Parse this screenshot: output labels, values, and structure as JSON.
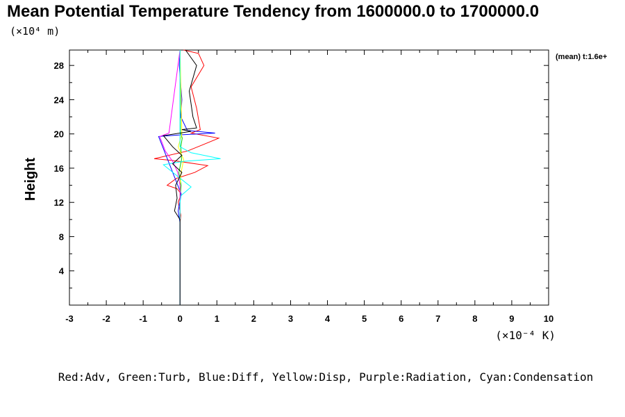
{
  "chart_data": {
    "type": "line",
    "title": "Mean Potential Temperature Tendency from 1600000.0 to 1700000.0",
    "ylabel": "Height",
    "y_unit": "(×10⁴ m)",
    "x_unit": "(×10⁻⁴ K)",
    "annotation": "(mean) t:1.6e+",
    "legend_text": "Red:Adv, Green:Turb, Blue:Diff, Yellow:Disp, Purple:Radiation, Cyan:Condensation",
    "xlim": [
      -3,
      10
    ],
    "ylim": [
      0,
      29.8
    ],
    "xticks": [
      -3,
      -2,
      -1,
      0,
      1,
      2,
      3,
      4,
      5,
      6,
      7,
      8,
      9,
      10
    ],
    "xtick_labels": [
      "-3",
      "-2",
      "-1",
      "0",
      "1",
      "2",
      "3",
      "4",
      "5",
      "6",
      "7",
      "8",
      "9",
      "10"
    ],
    "yticks": [
      4,
      8,
      12,
      16,
      20,
      24,
      28
    ],
    "ytick_labels": [
      "4",
      "8",
      "12",
      "16",
      "20",
      "24",
      "28"
    ],
    "grid": false,
    "series": [
      {
        "name": "Adv",
        "color": "#ff0000",
        "x": [
          0,
          0,
          0.02,
          -0.05,
          0.03,
          -0.08,
          -0.35,
          -0.1,
          0.4,
          0.75,
          -0.2,
          -0.7,
          0.2,
          0.6,
          1.05,
          0.3,
          0.55,
          0.45,
          0.3,
          0.65,
          0.5,
          0.1
        ],
        "y": [
          0,
          9.5,
          10.5,
          12,
          13,
          13.6,
          14,
          14.8,
          15.5,
          16.3,
          16.9,
          17.1,
          18,
          18.7,
          19.5,
          20.1,
          20.5,
          23,
          25.5,
          28,
          29.4,
          29.8
        ]
      },
      {
        "name": "Turb",
        "color": "#00cc00",
        "x": [
          0,
          0,
          0.03,
          -0.03,
          0.04,
          0.02,
          0.06,
          0.01,
          0
        ],
        "y": [
          0,
          12.5,
          14,
          15.5,
          17,
          18.5,
          19.5,
          20.2,
          29.8
        ]
      },
      {
        "name": "Diff",
        "color": "#0000ff",
        "x": [
          0,
          0,
          -0.05,
          0.03,
          -0.58,
          0.05,
          0.95,
          0.2,
          0.02,
          0.05,
          -0.02,
          0
        ],
        "y": [
          0,
          9.6,
          11,
          13,
          19.7,
          19.9,
          20.1,
          20.4,
          22,
          24,
          28,
          29.8
        ]
      },
      {
        "name": "Disp",
        "color": "#ffff00",
        "x": [
          0,
          0,
          0.03,
          0.1,
          -0.05,
          0.05,
          0
        ],
        "y": [
          0,
          14,
          15.5,
          17,
          18.5,
          20,
          29.8
        ]
      },
      {
        "name": "Radiation",
        "color": "#ff00ff",
        "x": [
          0,
          0,
          -0.06,
          -0.2,
          -0.4,
          -0.55,
          -0.3,
          0
        ],
        "y": [
          0,
          14,
          15.5,
          16.8,
          18,
          19.7,
          20.1,
          29.8
        ]
      },
      {
        "name": "Condensation",
        "color": "#00ffff",
        "x": [
          0,
          0,
          0.03,
          0.3,
          -0.05,
          -0.45,
          0.1,
          1.1,
          0.3,
          0,
          0
        ],
        "y": [
          0,
          12,
          12.8,
          13.8,
          15,
          16.4,
          16.8,
          17.1,
          17.8,
          18.5,
          29.8
        ]
      },
      {
        "name": "mean",
        "color": "#000000",
        "x": [
          0,
          0,
          -0.15,
          -0.08,
          -0.12,
          0.05,
          -0.2,
          0.05,
          -0.2,
          -0.45,
          0.3,
          0.05,
          0.45,
          0.35,
          0.25,
          0.45,
          0.15
        ],
        "y": [
          0,
          10,
          11,
          12.5,
          14,
          15.5,
          16.5,
          17.5,
          18.5,
          19.8,
          20.3,
          20.5,
          20.7,
          22,
          25,
          28,
          29.8
        ]
      }
    ]
  }
}
